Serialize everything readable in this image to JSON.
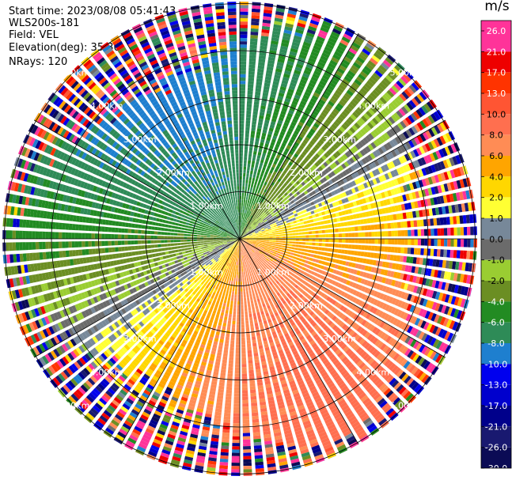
{
  "header": {
    "start_time": "Start time: 2023/08/08 05:41:43",
    "instrument": "WLS200s-181",
    "field": "Field: VEL",
    "elevation": "Elevation(deg): 35.30",
    "nrays": "NRays: 120"
  },
  "chart_data": {
    "type": "heatmap",
    "projection": "polar PPI scan",
    "field": "VEL",
    "unit_label": "m/s",
    "n_rays": 120,
    "elevation_deg": 35.3,
    "range_rings_km": [
      1,
      2,
      3,
      4,
      5
    ],
    "ring_labels": [
      "1.00km",
      "2.00km",
      "3.00km",
      "4.00km",
      "5.00km"
    ],
    "colorbar": {
      "ticks": [
        "26.0",
        "21.0",
        "17.0",
        "13.0",
        "10.0",
        "8.0",
        "6.0",
        "4.0",
        "2.0",
        "1.0",
        "0.0",
        "-1.0",
        "-2.0",
        "-4.0",
        "-6.0",
        "-8.0",
        "-10.0",
        "-13.0",
        "-17.0",
        "-21.0",
        "-26.0",
        "-30.0"
      ],
      "bands": [
        {
          "from": 21,
          "to": 30,
          "color": "#ff3399"
        },
        {
          "from": 17,
          "to": 21,
          "color": "#ee0000"
        },
        {
          "from": 13,
          "to": 17,
          "color": "#ff3300"
        },
        {
          "from": 10,
          "to": 13,
          "color": "#ff5533"
        },
        {
          "from": 8,
          "to": 10,
          "color": "#ff6f4f"
        },
        {
          "from": 6,
          "to": 8,
          "color": "#ff8c55"
        },
        {
          "from": 4,
          "to": 6,
          "color": "#ffa500"
        },
        {
          "from": 2,
          "to": 4,
          "color": "#ffd700"
        },
        {
          "from": 1,
          "to": 2,
          "color": "#ffff33"
        },
        {
          "from": 0,
          "to": 1,
          "color": "#778899"
        },
        {
          "from": -1,
          "to": 0,
          "color": "#6b6b6b"
        },
        {
          "from": -2,
          "to": -1,
          "color": "#9acd32"
        },
        {
          "from": -4,
          "to": -2,
          "color": "#6b8e23"
        },
        {
          "from": -6,
          "to": -4,
          "color": "#228b22"
        },
        {
          "from": -8,
          "to": -6,
          "color": "#2e8b57"
        },
        {
          "from": -10,
          "to": -8,
          "color": "#1e7fcf"
        },
        {
          "from": -13,
          "to": -10,
          "color": "#0000ee"
        },
        {
          "from": -17,
          "to": -13,
          "color": "#0000cd"
        },
        {
          "from": -21,
          "to": -17,
          "color": "#00008b"
        },
        {
          "from": -26,
          "to": -21,
          "color": "#191970"
        },
        {
          "from": -30,
          "to": -26,
          "color": "#0b0b55"
        }
      ]
    },
    "velocity_pattern": {
      "max_approach_azimuth_deg": 330,
      "amplitude_ms": 8,
      "noise_beyond_km": 4.0
    }
  }
}
